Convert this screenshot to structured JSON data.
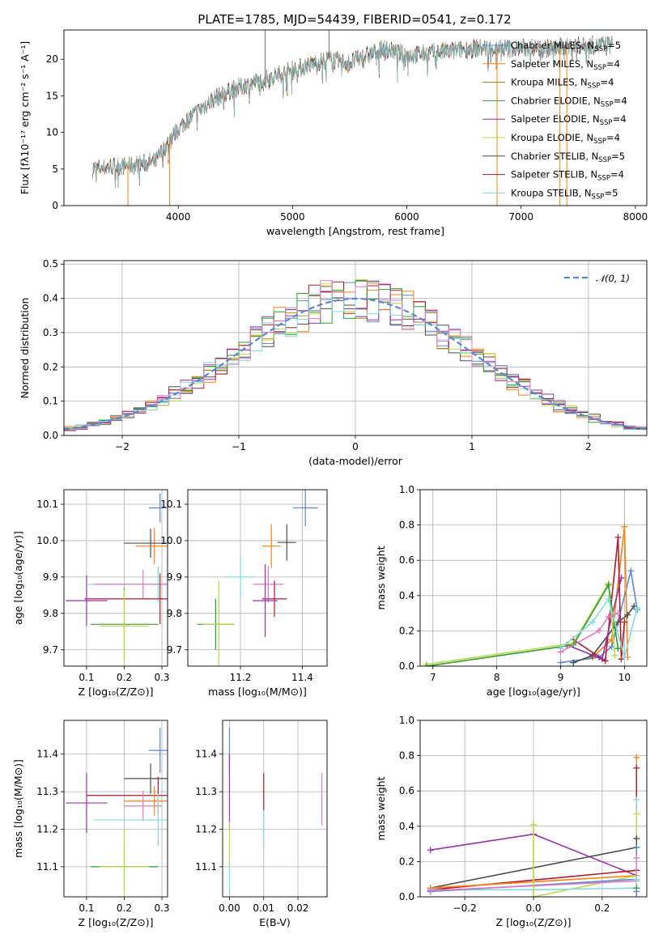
{
  "title": "PLATE=1785, MJD=54439, FIBERID=0541, z=0.172",
  "colors": {
    "Chabrier MILES": "#5b86d6",
    "Salpeter MILES": "#ff7f0e",
    "Kroupa MILES": "#a6761d",
    "Chabrier ELODIE": "#2ca02c",
    "Salpeter ELODIE": "#9b2fae",
    "Kroupa ELODIE": "#bcd94a",
    "Chabrier STELIB": "#4d4d4d",
    "Salpeter STELIB": "#b2182b",
    "Kroupa STELIB": "#80dcdc",
    "pink": "#e377c2",
    "normal": "#5b86d6"
  },
  "chart_data": [
    {
      "id": "spectrum",
      "type": "line",
      "title": "PLATE=1785, MJD=54439, FIBERID=0541, z=0.172",
      "xlabel": "wavelength [Angstrom, rest frame]",
      "ylabel": "Flux [fλ10⁻¹⁷ erg cm⁻² s⁻¹ A⁻¹]",
      "xlim": [
        3000,
        8100
      ],
      "ylim": [
        0,
        24
      ],
      "xticks": [
        "4000",
        "5000",
        "6000",
        "7000",
        "8000"
      ],
      "xtick_values": [
        4000,
        5000,
        6000,
        7000,
        8000
      ],
      "yticks": [
        "0",
        "5",
        "10",
        "15",
        "20"
      ],
      "ytick_values": [
        0,
        5,
        10,
        15,
        20
      ],
      "legend_position": "upper-right",
      "legend": [
        {
          "label": "Chabrier MILES, N",
          "sub": "SSP",
          "suffix": "=5",
          "color": "#5b86d6"
        },
        {
          "label": "Salpeter MILES, N",
          "sub": "SSP",
          "suffix": "=4",
          "color": "#ff7f0e"
        },
        {
          "label": "Kroupa MILES, N",
          "sub": "SSP",
          "suffix": "=4",
          "color": "#a6761d"
        },
        {
          "label": "Chabrier ELODIE, N",
          "sub": "SSP",
          "suffix": "=4",
          "color": "#2ca02c"
        },
        {
          "label": "Salpeter ELODIE, N",
          "sub": "SSP",
          "suffix": "=4",
          "color": "#9b2fae"
        },
        {
          "label": "Kroupa ELODIE, N",
          "sub": "SSP",
          "suffix": "=4",
          "color": "#bcd94a"
        },
        {
          "label": "Chabrier STELIB, N",
          "sub": "SSP",
          "suffix": "=5",
          "color": "#4d4d4d"
        },
        {
          "label": "Salpeter STELIB, N",
          "sub": "SSP",
          "suffix": "=4",
          "color": "#b2182b"
        },
        {
          "label": "Kroupa STELIB, N",
          "sub": "SSP",
          "suffix": "=5",
          "color": "#80dcdc"
        }
      ],
      "continuum": {
        "x": [
          3250,
          3400,
          3600,
          3800,
          3950,
          4000,
          4100,
          4300,
          4500,
          4800,
          5000,
          5300,
          5500,
          5800,
          6000,
          6300,
          6600,
          7000,
          7300,
          7500,
          7800
        ],
        "y": [
          5.0,
          5.3,
          5.5,
          6.0,
          9.5,
          10.5,
          12.0,
          14.5,
          16.0,
          17.5,
          18.5,
          20.0,
          19.5,
          21.5,
          20.5,
          21.0,
          21.5,
          21.5,
          21.5,
          21.8,
          22.0
        ]
      },
      "spikes": [
        {
          "x": 3560,
          "y": 0
        },
        {
          "x": 3925,
          "y": 0
        },
        {
          "x": 4760,
          "y": 24
        },
        {
          "x": 5320,
          "y": 24
        },
        {
          "x": 6790,
          "y": 0
        },
        {
          "x": 7340,
          "y": 0
        },
        {
          "x": 7400,
          "y": 0
        }
      ]
    },
    {
      "id": "residuals",
      "type": "bar",
      "xlabel": "(data-model)/error",
      "ylabel": "Normed distribution",
      "xlim": [
        -2.5,
        2.5
      ],
      "ylim": [
        0,
        0.51
      ],
      "xticks": [
        "−2",
        "−1",
        "0",
        "1",
        "2"
      ],
      "xtick_values": [
        -2,
        -1,
        0,
        1,
        2
      ],
      "yticks": [
        "0.0",
        "0.1",
        "0.2",
        "0.3",
        "0.4",
        "0.5"
      ],
      "ytick_values": [
        0,
        0.1,
        0.2,
        0.3,
        0.4,
        0.5
      ],
      "bin_width": 0.1,
      "legend": [
        {
          "label": "𝒩(0, 1)",
          "color": "#5b86d6",
          "style": "dashed"
        }
      ],
      "legend_position": "upper-right"
    },
    {
      "id": "age-vs-Z",
      "type": "scatter",
      "xlabel": "Z [log₁₀(Z/Z⊙)]",
      "ylabel": "age  [log₁₀(age/yr)]",
      "xlim": [
        0.04,
        0.315
      ],
      "ylim": [
        9.655,
        10.14
      ],
      "xticks": [
        "0.1",
        "0.2",
        "0.3"
      ],
      "xtick_values": [
        0.1,
        0.2,
        0.3
      ],
      "yticks": [
        "9.7",
        "9.8",
        "9.9",
        "10.0",
        "10.1"
      ],
      "ytick_values": [
        9.7,
        9.8,
        9.9,
        10.0,
        10.1
      ],
      "points": [
        {
          "x": 0.295,
          "y": 10.09,
          "xerr": 0.03,
          "yerr": 0.04,
          "color": "#5b86d6"
        },
        {
          "x": 0.28,
          "y": 9.985,
          "xerr": 0.05,
          "yerr": 0.05,
          "color": "#ff7f0e"
        },
        {
          "x": 0.27,
          "y": 9.993,
          "xerr": 0.07,
          "yerr": 0.04,
          "color": "#4d4d4d"
        },
        {
          "x": 0.29,
          "y": 9.88,
          "xerr": 0.19,
          "yerr": 0.05,
          "color": "#80dcdc"
        },
        {
          "x": 0.25,
          "y": 9.88,
          "xerr": 0.13,
          "yerr": 0.04,
          "color": "#e377c2"
        },
        {
          "x": 0.295,
          "y": 9.84,
          "xerr": 0.2,
          "yerr": 0.07,
          "color": "#b2182b"
        },
        {
          "x": 0.1,
          "y": 9.835,
          "xerr": 0.055,
          "yerr": 0.07,
          "color": "#9b2fae"
        },
        {
          "x": 0.2,
          "y": 9.77,
          "xerr": 0.09,
          "yerr": 0.1,
          "color": "#2ca02c"
        },
        {
          "x": 0.2,
          "y": 9.765,
          "xerr": 0.065,
          "yerr": 0.1,
          "color": "#bcd94a"
        }
      ]
    },
    {
      "id": "age-vs-mass",
      "type": "scatter",
      "xlabel": "mass [log₁₀(M/M⊙)]",
      "ylabel": "",
      "xlim": [
        11.03,
        11.48
      ],
      "ylim": [
        9.655,
        10.14
      ],
      "xticks": [
        "11.2",
        "11.4"
      ],
      "xtick_values": [
        11.2,
        11.4
      ],
      "yticks": [
        "9.7",
        "9.8",
        "9.9",
        "10.0",
        "10.1"
      ],
      "ytick_values": [
        9.7,
        9.8,
        9.9,
        10.0,
        10.1
      ],
      "points": [
        {
          "x": 11.41,
          "y": 10.09,
          "xerr": 0.04,
          "yerr": 0.05,
          "color": "#5b86d6"
        },
        {
          "x": 11.35,
          "y": 9.995,
          "xerr": 0.03,
          "yerr": 0.05,
          "color": "#4d4d4d"
        },
        {
          "x": 11.3,
          "y": 9.985,
          "xerr": 0.03,
          "yerr": 0.06,
          "color": "#ff7f0e"
        },
        {
          "x": 11.2,
          "y": 9.9,
          "xerr": 0.05,
          "yerr": 0.06,
          "color": "#80dcdc"
        },
        {
          "x": 11.29,
          "y": 9.88,
          "xerr": 0.05,
          "yerr": 0.05,
          "color": "#e377c2"
        },
        {
          "x": 11.31,
          "y": 9.84,
          "xerr": 0.04,
          "yerr": 0.05,
          "color": "#b2182b"
        },
        {
          "x": 11.28,
          "y": 9.835,
          "xerr": 0.04,
          "yerr": 0.1,
          "color": "#9b2fae"
        },
        {
          "x": 11.12,
          "y": 9.77,
          "xerr": 0.06,
          "yerr": 0.07,
          "color": "#2ca02c"
        },
        {
          "x": 11.13,
          "y": 9.77,
          "xerr": 0.05,
          "yerr": 0.12,
          "color": "#bcd94a"
        }
      ]
    },
    {
      "id": "massweight-vs-age",
      "type": "line",
      "xlabel": "age  [log₁₀(age/yr)]",
      "ylabel": "mass weight",
      "xlim": [
        6.8,
        10.35
      ],
      "ylim": [
        0,
        1.0
      ],
      "xticks": [
        "7",
        "8",
        "9",
        "10"
      ],
      "xtick_values": [
        7,
        8,
        9,
        10
      ],
      "yticks": [
        "0.0",
        "0.2",
        "0.4",
        "0.6",
        "0.8",
        "1.0"
      ],
      "ytick_values": [
        0,
        0.2,
        0.4,
        0.6,
        0.8,
        1.0
      ],
      "series": [
        {
          "color": "#5b86d6",
          "x": [
            9.0,
            9.6,
            9.8,
            10.1,
            10.2
          ],
          "y": [
            0.02,
            0.05,
            0.11,
            0.54,
            0.32
          ]
        },
        {
          "color": "#ff7f0e",
          "x": [
            9.5,
            9.8,
            10.0,
            10.05
          ],
          "y": [
            0.05,
            0.15,
            0.79,
            0.05
          ]
        },
        {
          "color": "#4d4d4d",
          "x": [
            9.2,
            9.5,
            9.9,
            10.05,
            10.15
          ],
          "y": [
            0.02,
            0.06,
            0.25,
            0.29,
            0.34
          ]
        },
        {
          "color": "#b2182b",
          "x": [
            9.2,
            9.7,
            9.9,
            9.95,
            10.0
          ],
          "y": [
            0.15,
            0.03,
            0.73,
            0.04,
            0.25
          ]
        },
        {
          "color": "#9b2fae",
          "x": [
            9.1,
            9.65,
            9.8,
            9.95
          ],
          "y": [
            0.12,
            0.04,
            0.28,
            0.5
          ]
        },
        {
          "color": "#bcd94a",
          "x": [
            6.9,
            9.2,
            9.75,
            9.85
          ],
          "y": [
            0.01,
            0.13,
            0.47,
            0.06
          ]
        },
        {
          "color": "#2ca02c",
          "x": [
            6.9,
            9.2,
            9.75,
            9.9
          ],
          "y": [
            0.0,
            0.12,
            0.46,
            0.1
          ]
        },
        {
          "color": "#80dcdc",
          "x": [
            9.0,
            9.5,
            9.75,
            10.0,
            10.2
          ],
          "y": [
            0.1,
            0.25,
            0.38,
            0.05,
            0.33
          ]
        },
        {
          "color": "#e377c2",
          "x": [
            9.0,
            9.6,
            9.75,
            9.9
          ],
          "y": [
            0.08,
            0.2,
            0.28,
            0.3
          ]
        }
      ]
    },
    {
      "id": "mass-vs-Z",
      "type": "scatter",
      "xlabel": "Z [log₁₀(Z/Z⊙)]",
      "ylabel": "mass [log₁₀(M/M⊙)]",
      "xlim": [
        0.04,
        0.315
      ],
      "ylim": [
        11.02,
        11.49
      ],
      "xticks": [
        "0.1",
        "0.2",
        "0.3"
      ],
      "xtick_values": [
        0.1,
        0.2,
        0.3
      ],
      "yticks": [
        "11.1",
        "11.2",
        "11.3",
        "11.4"
      ],
      "ytick_values": [
        11.1,
        11.2,
        11.3,
        11.4
      ],
      "points": [
        {
          "x": 0.295,
          "y": 11.41,
          "xerr": 0.03,
          "yerr": 0.06,
          "color": "#5b86d6"
        },
        {
          "x": 0.27,
          "y": 11.335,
          "xerr": 0.07,
          "yerr": 0.04,
          "color": "#4d4d4d"
        },
        {
          "x": 0.29,
          "y": 11.29,
          "xerr": 0.19,
          "yerr": 0.05,
          "color": "#b2182b"
        },
        {
          "x": 0.28,
          "y": 11.275,
          "xerr": 0.08,
          "yerr": 0.04,
          "color": "#ff7f0e"
        },
        {
          "x": 0.1,
          "y": 11.27,
          "xerr": 0.055,
          "yerr": 0.08,
          "color": "#9b2fae"
        },
        {
          "x": 0.25,
          "y": 11.262,
          "xerr": 0.05,
          "yerr": 0.04,
          "color": "#e377c2"
        },
        {
          "x": 0.29,
          "y": 11.225,
          "xerr": 0.17,
          "yerr": 0.07,
          "color": "#80dcdc"
        },
        {
          "x": 0.2,
          "y": 11.1,
          "xerr": 0.09,
          "yerr": 0.06,
          "color": "#2ca02c"
        },
        {
          "x": 0.2,
          "y": 11.1,
          "xerr": 0.065,
          "yerr": 0.1,
          "color": "#bcd94a"
        }
      ]
    },
    {
      "id": "mass-vs-EBV",
      "type": "scatter",
      "xlabel": "E(B-V)",
      "ylabel": "",
      "xlim": [
        -0.002,
        0.0285
      ],
      "ylim": [
        11.02,
        11.49
      ],
      "xticks": [
        "0.00",
        "0.01",
        "0.02"
      ],
      "xtick_values": [
        0,
        0.01,
        0.02
      ],
      "yticks": [
        "11.1",
        "11.2",
        "11.3",
        "11.4"
      ],
      "ytick_values": [
        11.1,
        11.2,
        11.3,
        11.4
      ],
      "points": [
        {
          "x": 0.0,
          "y": 11.41,
          "xerr": 0,
          "yerr": 0.06,
          "color": "#5b86d6"
        },
        {
          "x": 0.0,
          "y": 11.3,
          "xerr": 0,
          "yerr": 0.1,
          "color": "#9b2fae"
        },
        {
          "x": 0.0,
          "y": 11.16,
          "xerr": 0,
          "yerr": 0.06,
          "color": "#bcd94a"
        },
        {
          "x": 0.0,
          "y": 11.07,
          "xerr": 0,
          "yerr": 0.04,
          "color": "#80dcdc"
        },
        {
          "x": 0.01,
          "y": 11.3,
          "xerr": 0,
          "yerr": 0.05,
          "color": "#b2182b"
        },
        {
          "x": 0.01,
          "y": 11.2,
          "xerr": 0,
          "yerr": 0.05,
          "color": "#80dcdc"
        },
        {
          "x": 0.027,
          "y": 11.28,
          "xerr": 0,
          "yerr": 0.07,
          "color": "#e377c2"
        }
      ]
    },
    {
      "id": "massweight-vs-Z",
      "type": "line",
      "xlabel": "Z [log₁₀(Z/Z⊙)]",
      "ylabel": "mass weight",
      "xlim": [
        -0.33,
        0.33
      ],
      "ylim": [
        0,
        1.0
      ],
      "xticks": [
        "−0.2",
        "0.0",
        "0.2"
      ],
      "xtick_values": [
        -0.2,
        0,
        0.2
      ],
      "yticks": [
        "0.0",
        "0.2",
        "0.4",
        "0.6",
        "0.8",
        "1.0"
      ],
      "ytick_values": [
        0,
        0.2,
        0.4,
        0.6,
        0.8,
        1.0
      ],
      "series": [
        {
          "color": "#9b2fae",
          "x": [
            -0.3,
            0.0,
            0.3
          ],
          "y": [
            0.265,
            0.355,
            0.12
          ]
        },
        {
          "color": "#4d4d4d",
          "x": [
            -0.3,
            0.3
          ],
          "y": [
            0.05,
            0.28
          ]
        },
        {
          "color": "#b2182b",
          "x": [
            -0.3,
            0.3
          ],
          "y": [
            0.04,
            0.15
          ]
        },
        {
          "color": "#ff7f0e",
          "x": [
            -0.3,
            0.3
          ],
          "y": [
            0.05,
            0.12
          ]
        },
        {
          "color": "#bcd94a",
          "x": [
            0.0,
            0.0,
            0.3
          ],
          "y": [
            0.41,
            0.0,
            0.12
          ]
        },
        {
          "color": "#80dcdc",
          "x": [
            -0.3,
            0.0,
            0.3
          ],
          "y": [
            0.04,
            0.04,
            0.05
          ]
        },
        {
          "color": "#5b86d6",
          "x": [
            -0.3,
            0.3
          ],
          "y": [
            0.03,
            0.1
          ]
        },
        {
          "color": "#e377c2",
          "x": [
            -0.3,
            0.3
          ],
          "y": [
            0.035,
            0.09
          ]
        }
      ],
      "stacks": [
        {
          "x": 0.3,
          "ys": [
            0.79,
            0.73,
            0.55,
            0.47,
            0.33,
            0.28,
            0.22,
            0.1,
            0.05,
            0.03
          ],
          "colors": [
            "#ff7f0e",
            "#b2182b",
            "#80dcdc",
            "#bcd94a",
            "#4d4d4d",
            "#5b86d6",
            "#e377c2",
            "#80dcdc",
            "#2ca02c",
            "#5b86d6"
          ]
        },
        {
          "x": 0.0,
          "ys": [
            0.41
          ],
          "colors": [
            "#bcd94a"
          ]
        }
      ]
    }
  ]
}
